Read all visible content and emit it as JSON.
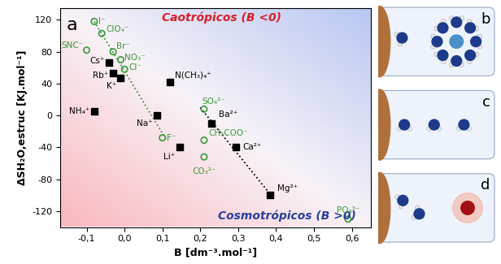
{
  "chart_data": {
    "type": "scatter",
    "panel_label": "a",
    "xlabel": "B [dm⁻³.mol⁻¹]",
    "ylabel": "ΔSH₂O,estruc [KJ.mol⁻¹]",
    "xlim": [
      -0.17,
      0.65
    ],
    "ylim": [
      -140,
      135
    ],
    "xticks": [
      {
        "value": -0.1,
        "label": "-0,1"
      },
      {
        "value": 0.0,
        "label": "0,0"
      },
      {
        "value": 0.1,
        "label": "0,1"
      },
      {
        "value": 0.2,
        "label": "0,2"
      },
      {
        "value": 0.3,
        "label": "0,3"
      },
      {
        "value": 0.4,
        "label": "0,4"
      },
      {
        "value": 0.5,
        "label": "0,5"
      },
      {
        "value": 0.6,
        "label": "0,6"
      }
    ],
    "yticks": [
      {
        "value": -120,
        "label": "-120"
      },
      {
        "value": -80,
        "label": "-80"
      },
      {
        "value": -40,
        "label": "-40"
      },
      0,
      40,
      80,
      120
    ],
    "annotations": [
      {
        "text": "Caotrópicos (B <0)",
        "color": "#d8202a"
      },
      {
        "text": "Cosmotrópicos (B >0)",
        "color": "#2a3f9a"
      }
    ],
    "series": [
      {
        "type": "scatter",
        "color": "#3a9a3a",
        "marker": "circle_open",
        "x": [
          -0.08,
          -0.06,
          -0.1,
          -0.03,
          -0.01,
          0.0,
          0.1,
          0.21,
          0.21,
          0.21,
          0.59
        ],
        "values": [
          118,
          103,
          82,
          80,
          70,
          58,
          -28,
          8,
          -31,
          -52,
          -130
        ],
        "point_labels": [
          "I⁻",
          "ClO₄⁻",
          "SNC⁻",
          "Br⁻",
          "NO₃⁻",
          "Cl⁻",
          "F⁻",
          "SO₄²⁻",
          "CH₃COO⁻",
          "CO₃²⁻",
          "PO₄³⁻"
        ]
      },
      {
        "type": "scatter",
        "color": "#000000",
        "marker": "square",
        "x": [
          -0.04,
          -0.03,
          -0.01,
          -0.08,
          0.085,
          0.145,
          0.12,
          0.23,
          0.295,
          0.385
        ],
        "values": [
          66,
          53,
          47,
          5,
          0,
          -40,
          42,
          -10,
          -40,
          -100
        ],
        "point_labels": [
          "Cs⁺",
          "Rb⁺",
          "K⁺",
          "NH₄⁺",
          "Na⁺",
          "Li⁺",
          "N(CH₃)₄⁺",
          "Ba²⁺",
          "Ca²⁺",
          "Mg²⁺"
        ]
      },
      {
        "type": "line",
        "color": "#3a9a3a",
        "line_style": "dotted",
        "x": [
          -0.085,
          0.11
        ],
        "values": [
          122,
          -30
        ]
      },
      {
        "type": "line",
        "color": "#000000",
        "line_style": "dotted",
        "x": [
          0.2,
          0.39
        ],
        "values": [
          10,
          -102
        ]
      }
    ]
  },
  "diagram": {
    "panels": [
      "b",
      "c",
      "d"
    ]
  }
}
